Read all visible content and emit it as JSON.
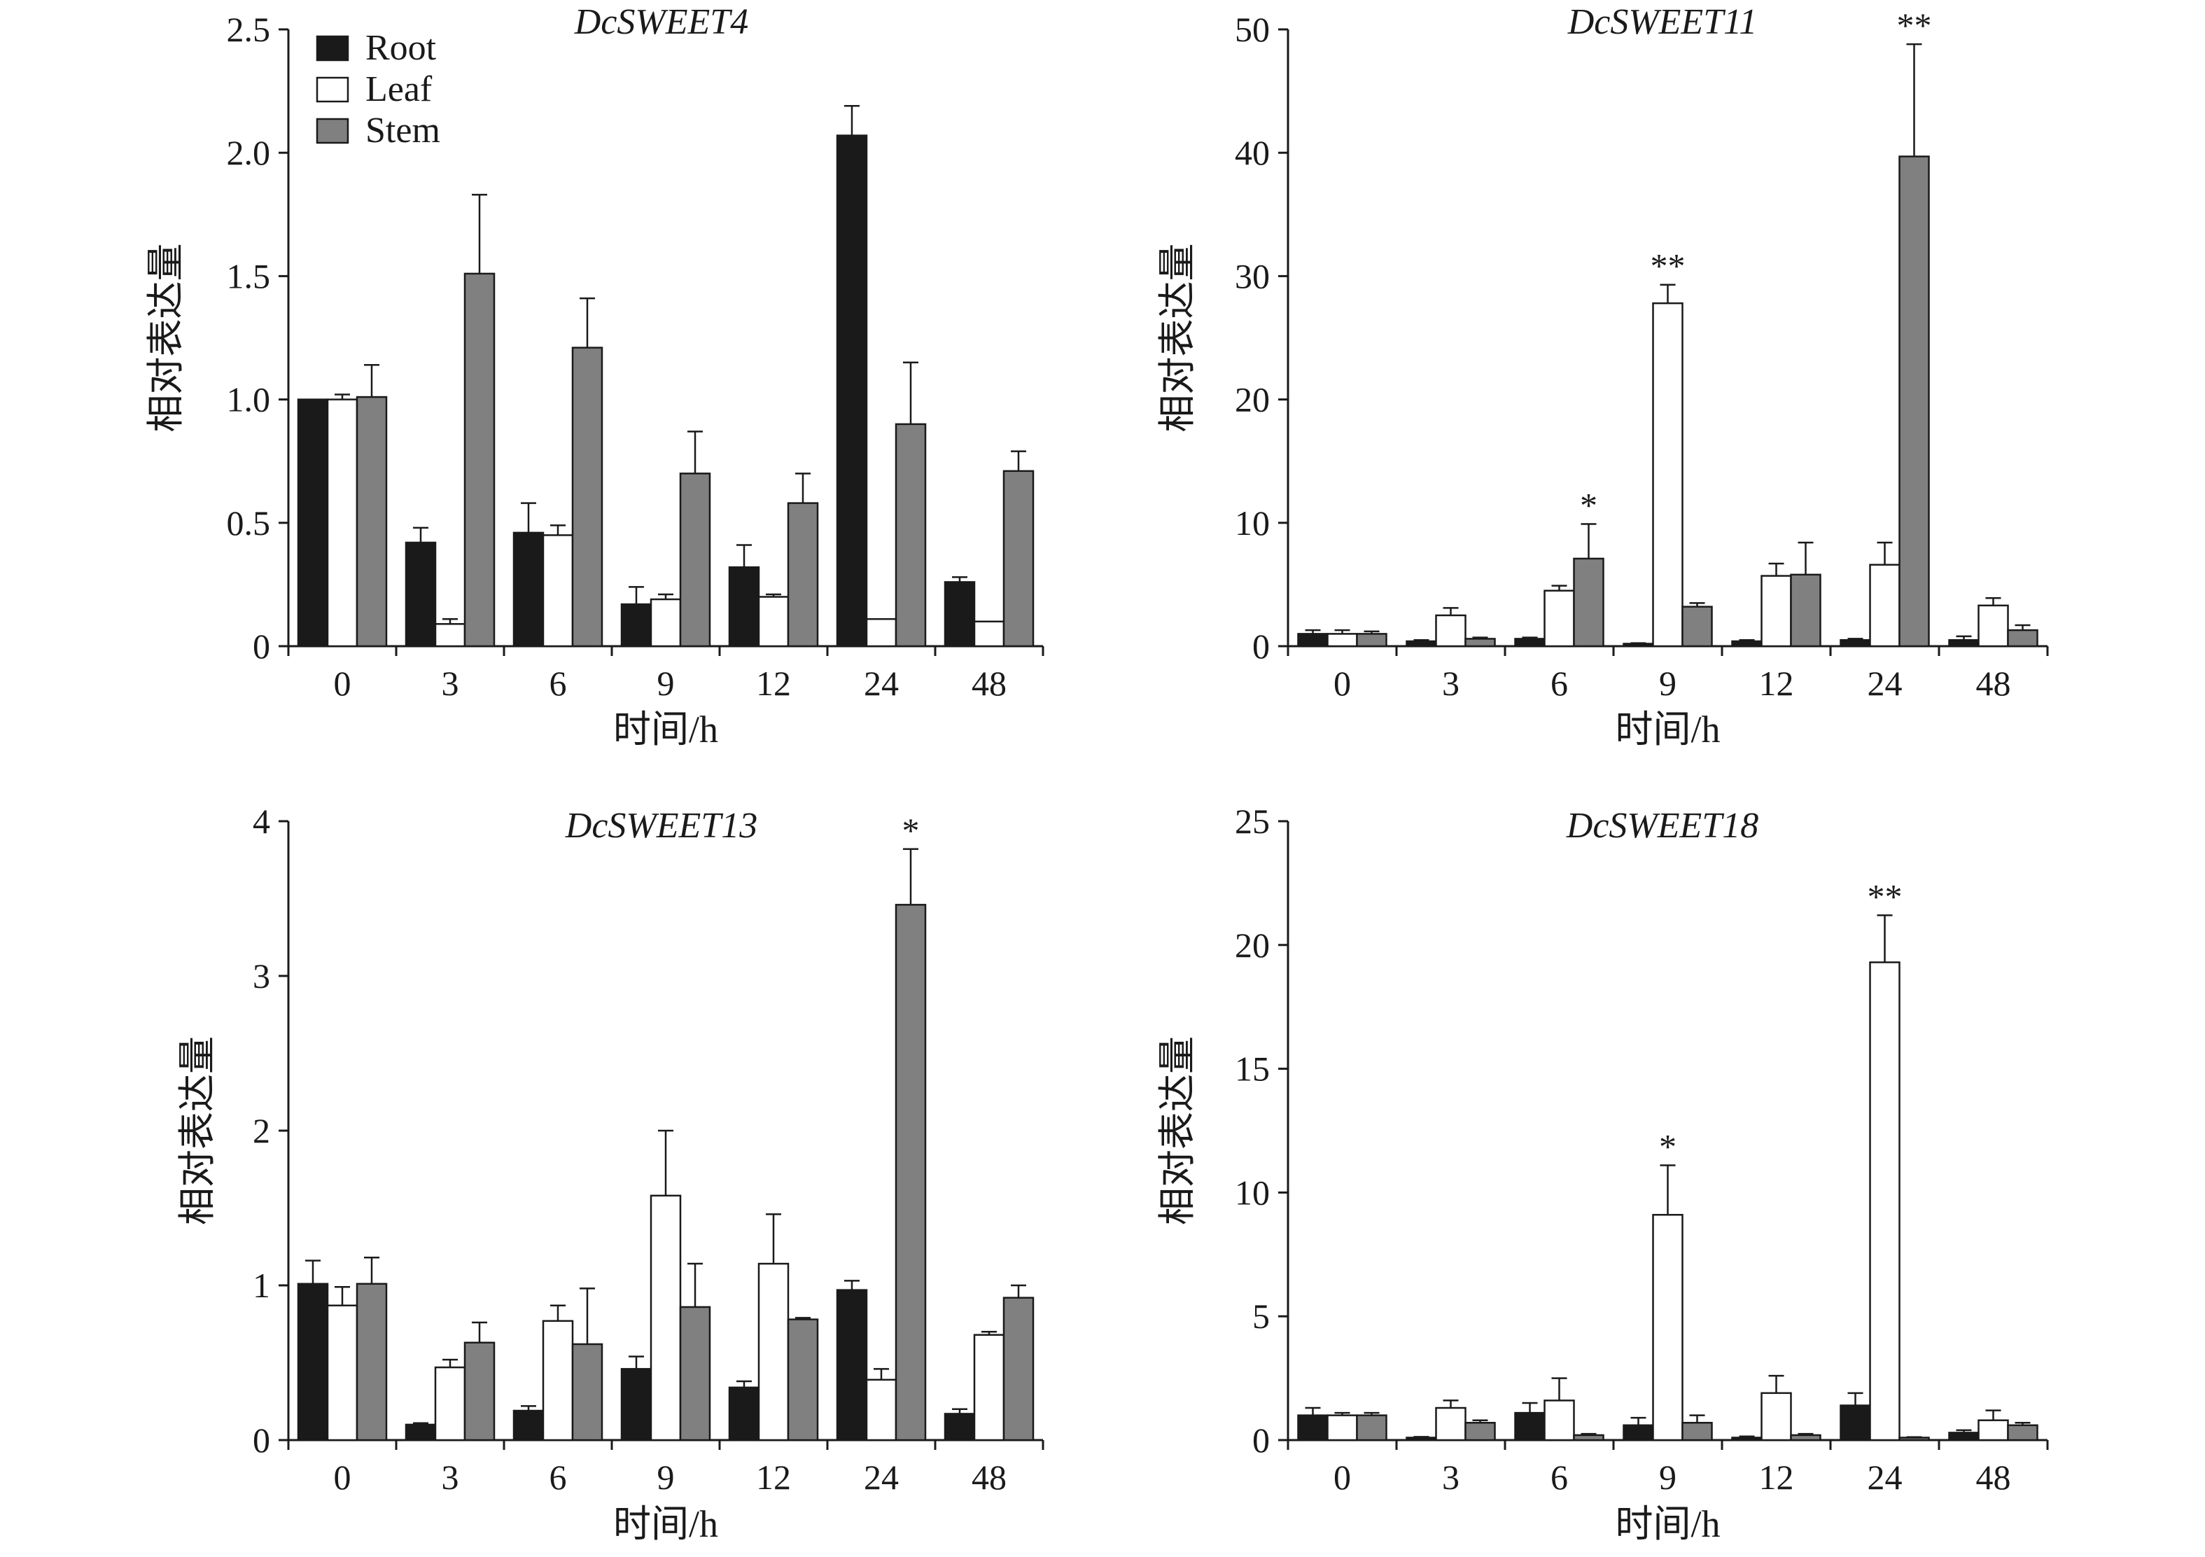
{
  "figure": {
    "colors": {
      "root": "#1a1a1a",
      "leaf": "#ffffff",
      "stem": "#808080",
      "axis": "#1a1a1a"
    },
    "legend": [
      "Root",
      "Leaf",
      "Stem"
    ]
  },
  "chart_data": [
    {
      "type": "bar",
      "title": "DcSWEET4",
      "xlabel": "时间/h",
      "ylabel": "相对表达量",
      "categories": [
        "0",
        "3",
        "6",
        "9",
        "12",
        "24",
        "48"
      ],
      "ylim": [
        0,
        2.5
      ],
      "yticks": [
        "0",
        "0.5",
        "1.0",
        "1.5",
        "2.0",
        "2.5"
      ],
      "legend": "top-left",
      "series": [
        {
          "name": "Root",
          "values": [
            1.0,
            0.42,
            0.46,
            0.17,
            0.32,
            2.07,
            0.26
          ],
          "errors": [
            0.0,
            0.06,
            0.12,
            0.07,
            0.09,
            0.12,
            0.02
          ]
        },
        {
          "name": "Leaf",
          "values": [
            1.0,
            0.09,
            0.45,
            0.19,
            0.2,
            0.11,
            0.1
          ],
          "errors": [
            0.02,
            0.02,
            0.04,
            0.02,
            0.01,
            0.0,
            0.0
          ]
        },
        {
          "name": "Stem",
          "values": [
            1.01,
            1.51,
            1.21,
            0.7,
            0.58,
            0.9,
            0.71
          ],
          "errors": [
            0.13,
            0.32,
            0.2,
            0.17,
            0.12,
            0.25,
            0.08
          ]
        }
      ],
      "annotations": []
    },
    {
      "type": "bar",
      "title": "DcSWEET11",
      "xlabel": "时间/h",
      "ylabel": "相对表达量",
      "categories": [
        "0",
        "3",
        "6",
        "9",
        "12",
        "24",
        "48"
      ],
      "ylim": [
        0,
        50
      ],
      "yticks": [
        "0",
        "10",
        "20",
        "30",
        "40",
        "50"
      ],
      "series": [
        {
          "name": "Root",
          "values": [
            1.0,
            0.4,
            0.6,
            0.2,
            0.4,
            0.5,
            0.5
          ],
          "errors": [
            0.3,
            0.1,
            0.1,
            0.05,
            0.1,
            0.1,
            0.3
          ]
        },
        {
          "name": "Leaf",
          "values": [
            1.0,
            2.5,
            4.5,
            27.8,
            5.7,
            6.6,
            3.3
          ],
          "errors": [
            0.3,
            0.6,
            0.4,
            1.5,
            1.0,
            1.8,
            0.6
          ]
        },
        {
          "name": "Stem",
          "values": [
            1.0,
            0.6,
            7.1,
            3.2,
            5.8,
            39.7,
            1.3
          ],
          "errors": [
            0.2,
            0.1,
            2.8,
            0.3,
            2.6,
            9.1,
            0.4
          ]
        }
      ],
      "annotations": [
        {
          "category": "6",
          "series": "Stem",
          "text": "*"
        },
        {
          "category": "9",
          "series": "Leaf",
          "text": "**"
        },
        {
          "category": "24",
          "series": "Stem",
          "text": "**"
        }
      ]
    },
    {
      "type": "bar",
      "title": "DcSWEET13",
      "xlabel": "时间/h",
      "ylabel": "相对表达量",
      "categories": [
        "0",
        "3",
        "6",
        "9",
        "12",
        "24",
        "48"
      ],
      "ylim": [
        0,
        4
      ],
      "yticks": [
        "0",
        "1",
        "2",
        "3",
        "4"
      ],
      "series": [
        {
          "name": "Root",
          "values": [
            1.01,
            0.1,
            0.19,
            0.46,
            0.34,
            0.97,
            0.17
          ],
          "errors": [
            0.15,
            0.01,
            0.03,
            0.08,
            0.04,
            0.06,
            0.03
          ]
        },
        {
          "name": "Leaf",
          "values": [
            0.87,
            0.47,
            0.77,
            1.58,
            1.14,
            0.39,
            0.68
          ],
          "errors": [
            0.12,
            0.05,
            0.1,
            0.42,
            0.32,
            0.07,
            0.02
          ]
        },
        {
          "name": "Stem",
          "values": [
            1.01,
            0.63,
            0.62,
            0.86,
            0.78,
            3.46,
            0.92
          ],
          "errors": [
            0.17,
            0.13,
            0.36,
            0.28,
            0.01,
            0.36,
            0.08
          ]
        }
      ],
      "annotations": [
        {
          "category": "24",
          "series": "Stem",
          "text": "*"
        }
      ]
    },
    {
      "type": "bar",
      "title": "DcSWEET18",
      "xlabel": "时间/h",
      "ylabel": "相对表达量",
      "categories": [
        "0",
        "3",
        "6",
        "9",
        "12",
        "24",
        "48"
      ],
      "ylim": [
        0,
        25
      ],
      "yticks": [
        "0",
        "5",
        "10",
        "15",
        "20",
        "25"
      ],
      "series": [
        {
          "name": "Root",
          "values": [
            1.0,
            0.1,
            1.1,
            0.6,
            0.1,
            1.4,
            0.3
          ],
          "errors": [
            0.3,
            0.03,
            0.4,
            0.3,
            0.05,
            0.5,
            0.1
          ]
        },
        {
          "name": "Leaf",
          "values": [
            1.0,
            1.3,
            1.6,
            9.1,
            1.9,
            19.3,
            0.8
          ],
          "errors": [
            0.1,
            0.3,
            0.9,
            2.0,
            0.7,
            1.9,
            0.4
          ]
        },
        {
          "name": "Stem",
          "values": [
            1.0,
            0.7,
            0.2,
            0.7,
            0.2,
            0.1,
            0.6
          ],
          "errors": [
            0.1,
            0.1,
            0.05,
            0.3,
            0.05,
            0.02,
            0.1
          ]
        }
      ],
      "annotations": [
        {
          "category": "9",
          "series": "Leaf",
          "text": "*"
        },
        {
          "category": "24",
          "series": "Leaf",
          "text": "**"
        }
      ]
    }
  ]
}
